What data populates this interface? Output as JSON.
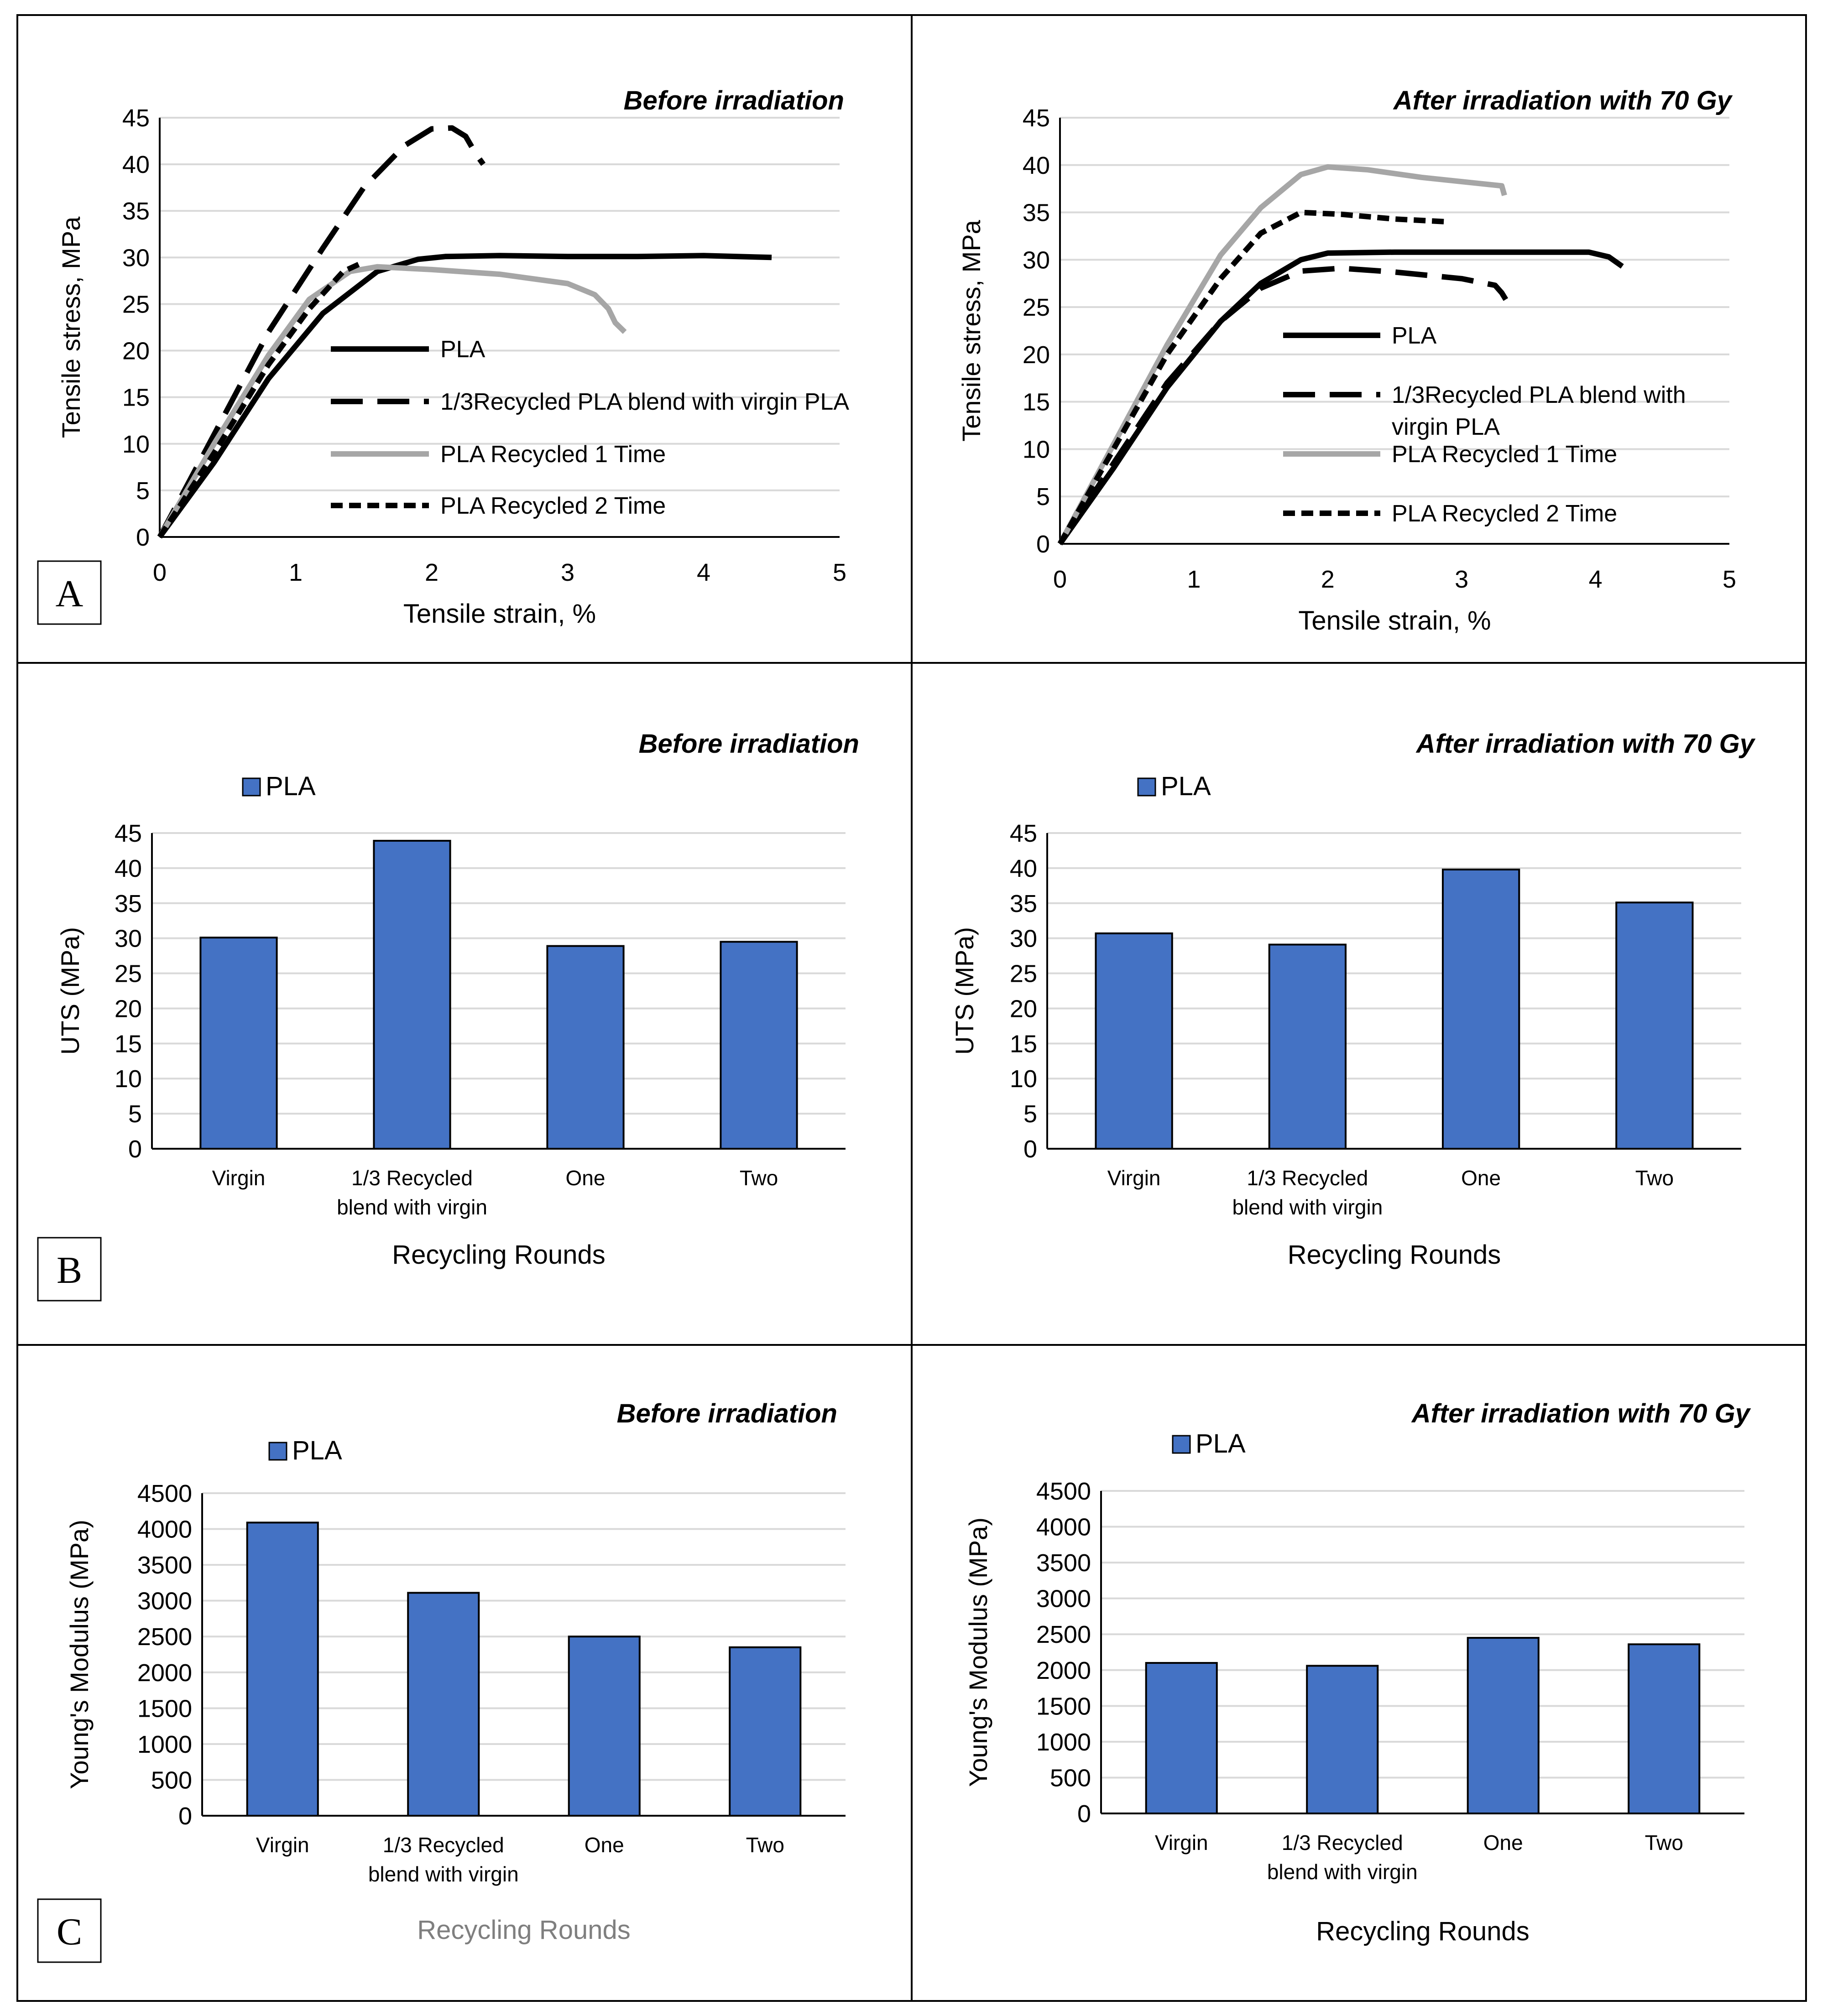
{
  "figure": {
    "panel_labels": [
      "A",
      "B",
      "C"
    ]
  },
  "chart_data": [
    {
      "id": "A-before",
      "type": "line",
      "title": "Before irradiation",
      "xlabel": "Tensile strain, %",
      "ylabel": "Tensile stress, MPa",
      "xlim": [
        0,
        5
      ],
      "ylim": [
        0,
        45
      ],
      "xticks": [
        "0",
        "1",
        "2",
        "3",
        "4",
        "5"
      ],
      "yticks": [
        "0",
        "5",
        "10",
        "15",
        "20",
        "25",
        "30",
        "35",
        "40",
        "45"
      ],
      "grid": true,
      "legend_position": "center-right",
      "series": [
        {
          "name": "PLA",
          "color": "#000000",
          "dash": "solid",
          "points": [
            [
              0,
              0
            ],
            [
              0.4,
              8
            ],
            [
              0.8,
              17
            ],
            [
              1.2,
              24
            ],
            [
              1.6,
              28.5
            ],
            [
              1.9,
              29.8
            ],
            [
              2.1,
              30.1
            ],
            [
              2.5,
              30.2
            ],
            [
              3,
              30.1
            ],
            [
              3.5,
              30.1
            ],
            [
              4,
              30.2
            ],
            [
              4.5,
              30
            ]
          ]
        },
        {
          "name": "1/3Recycled PLA blend with virgin PLA",
          "color": "#000000",
          "dash": "longdash",
          "points": [
            [
              0,
              0
            ],
            [
              0.4,
              11
            ],
            [
              0.8,
              22
            ],
            [
              1.2,
              31
            ],
            [
              1.5,
              37.5
            ],
            [
              1.8,
              42
            ],
            [
              2.0,
              43.8
            ],
            [
              2.15,
              43.9
            ],
            [
              2.25,
              43
            ],
            [
              2.33,
              41
            ],
            [
              2.38,
              40
            ]
          ]
        },
        {
          "name": "PLA Recycled 1 Time",
          "color": "#a6a6a6",
          "dash": "solid",
          "points": [
            [
              0,
              0
            ],
            [
              0.4,
              10
            ],
            [
              0.8,
              19.5
            ],
            [
              1.1,
              25.5
            ],
            [
              1.4,
              28.5
            ],
            [
              1.6,
              29
            ],
            [
              2,
              28.7
            ],
            [
              2.5,
              28.2
            ],
            [
              3,
              27.2
            ],
            [
              3.2,
              26
            ],
            [
              3.3,
              24.5
            ],
            [
              3.35,
              23
            ],
            [
              3.42,
              22
            ]
          ]
        },
        {
          "name": "PLA Recycled 2 Time",
          "color": "#000000",
          "dash": "shortdash",
          "points": [
            [
              0,
              0
            ],
            [
              0.4,
              9
            ],
            [
              0.8,
              18.5
            ],
            [
              1.1,
              24.5
            ],
            [
              1.35,
              28.5
            ],
            [
              1.5,
              29.5
            ]
          ]
        }
      ]
    },
    {
      "id": "A-after",
      "type": "line",
      "title": "After irradiation with 70 Gy",
      "xlabel": "Tensile strain, %",
      "ylabel": "Tensile stress, MPa",
      "xlim": [
        0,
        5
      ],
      "ylim": [
        0,
        45
      ],
      "xticks": [
        "0",
        "1",
        "2",
        "3",
        "4",
        "5"
      ],
      "yticks": [
        "0",
        "5",
        "10",
        "15",
        "20",
        "25",
        "30",
        "35",
        "40",
        "45"
      ],
      "grid": true,
      "legend_position": "center-right",
      "series": [
        {
          "name": "PLA",
          "color": "#000000",
          "dash": "solid",
          "points": [
            [
              0,
              0
            ],
            [
              0.4,
              8
            ],
            [
              0.8,
              16.5
            ],
            [
              1.2,
              23.5
            ],
            [
              1.5,
              27.5
            ],
            [
              1.8,
              30
            ],
            [
              2,
              30.7
            ],
            [
              2.5,
              30.8
            ],
            [
              3,
              30.8
            ],
            [
              3.5,
              30.8
            ],
            [
              3.95,
              30.8
            ],
            [
              4.1,
              30.3
            ],
            [
              4.2,
              29.3
            ]
          ]
        },
        {
          "name": "1/3Recycled PLA blend with virgin",
          "color": "#000000",
          "dash": "longdash",
          "points": [
            [
              0,
              0
            ],
            [
              0.4,
              8.5
            ],
            [
              0.8,
              17
            ],
            [
              1.2,
              23.5
            ],
            [
              1.5,
              27
            ],
            [
              1.8,
              28.8
            ],
            [
              2.1,
              29.1
            ],
            [
              2.5,
              28.7
            ],
            [
              3,
              28
            ],
            [
              3.25,
              27.3
            ],
            [
              3.3,
              26.5
            ],
            [
              3.33,
              25.8
            ]
          ]
        },
        {
          "name": "PLA Recycled 1 Time",
          "color": "#a6a6a6",
          "dash": "solid",
          "points": [
            [
              0,
              0
            ],
            [
              0.4,
              10.5
            ],
            [
              0.8,
              21
            ],
            [
              1.2,
              30.5
            ],
            [
              1.5,
              35.5
            ],
            [
              1.8,
              39
            ],
            [
              2,
              39.8
            ],
            [
              2.3,
              39.5
            ],
            [
              2.7,
              38.7
            ],
            [
              3.1,
              38.1
            ],
            [
              3.3,
              37.8
            ],
            [
              3.32,
              36.8
            ]
          ]
        },
        {
          "name": "PLA Recycled 2 Time",
          "color": "#000000",
          "dash": "shortdash",
          "points": [
            [
              0,
              0
            ],
            [
              0.4,
              10
            ],
            [
              0.8,
              20
            ],
            [
              1.2,
              28
            ],
            [
              1.5,
              32.8
            ],
            [
              1.8,
              35
            ],
            [
              2.1,
              34.8
            ],
            [
              2.5,
              34.3
            ],
            [
              2.9,
              34
            ]
          ]
        }
      ]
    },
    {
      "id": "B-before",
      "type": "bar",
      "title": "Before irradiation",
      "xlabel": "Recycling Rounds",
      "ylabel": "UTS (MPa)",
      "categories": [
        "Virgin",
        "1/3 Recycled blend with virgin",
        "One",
        "Two"
      ],
      "legend": "PLA",
      "color": "#4472c4",
      "values": [
        30.1,
        43.9,
        28.9,
        29.5
      ],
      "ylim": [
        0,
        45
      ],
      "yticks": [
        "0",
        "5",
        "10",
        "15",
        "20",
        "25",
        "30",
        "35",
        "40",
        "45"
      ],
      "grid": true,
      "legend_position": "top-left"
    },
    {
      "id": "B-after",
      "type": "bar",
      "title": "After irradiation with 70 Gy",
      "xlabel": "Recycling Rounds",
      "ylabel": "UTS (MPa)",
      "categories": [
        "Virgin",
        "1/3 Recycled blend with virgin",
        "One",
        "Two"
      ],
      "legend": "PLA",
      "color": "#4472c4",
      "values": [
        30.7,
        29.1,
        39.8,
        35.1
      ],
      "ylim": [
        0,
        45
      ],
      "yticks": [
        "0",
        "5",
        "10",
        "15",
        "20",
        "25",
        "30",
        "35",
        "40",
        "45"
      ],
      "grid": true,
      "legend_position": "top-left"
    },
    {
      "id": "C-before",
      "type": "bar",
      "title": "Before irradiation",
      "xlabel": "Recycling Rounds",
      "ylabel": "Young's Modulus (MPa)",
      "categories": [
        "Virgin",
        "1/3 Recycled blend with virgin",
        "One",
        "Two"
      ],
      "legend": "PLA",
      "color": "#4472c4",
      "values": [
        4090,
        3110,
        2500,
        2350
      ],
      "ylim": [
        0,
        4500
      ],
      "yticks": [
        "0",
        "500",
        "1000",
        "1500",
        "2000",
        "2500",
        "3000",
        "3500",
        "4000",
        "4500"
      ],
      "grid": true,
      "legend_position": "top-left"
    },
    {
      "id": "C-after",
      "type": "bar",
      "title": "After irradiation with 70 Gy",
      "xlabel": "Recycling Rounds",
      "ylabel": "Young's Modulus (MPa)",
      "categories": [
        "Virgin",
        "1/3 Recycled blend with virgin",
        "One",
        "Two"
      ],
      "legend": "PLA",
      "color": "#4472c4",
      "values": [
        2100,
        2060,
        2450,
        2360
      ],
      "ylim": [
        0,
        4500
      ],
      "yticks": [
        "0",
        "500",
        "1000",
        "1500",
        "2000",
        "2500",
        "3000",
        "3500",
        "4000",
        "4500"
      ],
      "grid": true,
      "legend_position": "top-left"
    }
  ]
}
